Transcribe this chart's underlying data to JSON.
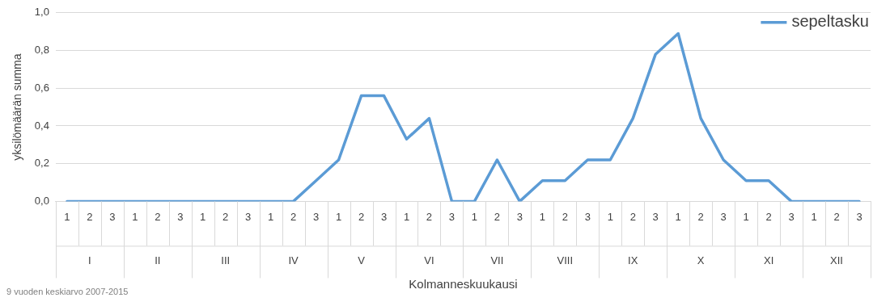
{
  "chart_data": {
    "type": "line",
    "xlabel": "Kolmanneskuukausi",
    "ylabel": "yksilömäärän summa",
    "categories": [
      "1",
      "2",
      "3",
      "1",
      "2",
      "3",
      "1",
      "2",
      "3",
      "1",
      "2",
      "3",
      "1",
      "2",
      "3",
      "1",
      "2",
      "3",
      "1",
      "2",
      "3",
      "1",
      "2",
      "3",
      "1",
      "2",
      "3",
      "1",
      "2",
      "3",
      "1",
      "2",
      "3",
      "1",
      "2",
      "3"
    ],
    "series": [
      {
        "name": "sepeltasku",
        "color": "#5b9bd5",
        "values": [
          0,
          0,
          0,
          0,
          0,
          0,
          0,
          0,
          0,
          0,
          0,
          0.11,
          0.22,
          0.56,
          0.56,
          0.33,
          0.44,
          0,
          0,
          0.22,
          0,
          0.11,
          0.11,
          0.22,
          0.22,
          0.44,
          0.78,
          0.89,
          0.44,
          0.22,
          0.11,
          0.11,
          0,
          0,
          0,
          0
        ]
      }
    ],
    "ylim": [
      0,
      1
    ],
    "yticks": [
      {
        "value": 0,
        "label": "0,0"
      },
      {
        "value": 0.2,
        "label": "0,2"
      },
      {
        "value": 0.4,
        "label": "0,4"
      },
      {
        "value": 0.6,
        "label": "0,6"
      },
      {
        "value": 0.8,
        "label": "0,8"
      },
      {
        "value": 1,
        "label": "1,0"
      }
    ],
    "grid": "y",
    "legend": "top right",
    "marker": "none",
    "line_style": "solid",
    "annotations": [
      "I",
      "II",
      "III",
      "IV",
      "V",
      "VI",
      "VII",
      "VIII",
      "IX",
      "X",
      "XI",
      "XII",
      "9 vuoden keskiarvo 2007-2015"
    ]
  }
}
